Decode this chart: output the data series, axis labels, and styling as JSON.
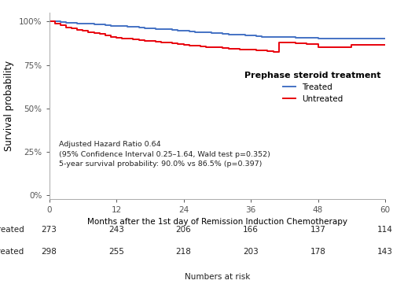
{
  "xlabel": "Months after the 1st day of Remission Induction Chemotherapy",
  "ylabel": "Survival probability",
  "xlim": [
    0,
    60
  ],
  "ylim": [
    -0.02,
    1.05
  ],
  "yticks": [
    0,
    0.25,
    0.5,
    0.75,
    1.0
  ],
  "ytick_labels": [
    "0%",
    "25%",
    "50%",
    "75%",
    "100%"
  ],
  "xticks": [
    0,
    12,
    24,
    36,
    48,
    60
  ],
  "legend_title": "Prephase steroid treatment",
  "legend_labels": [
    "Treated",
    "Untreated"
  ],
  "treated_color": "#4472C4",
  "untreated_color": "#E8000B",
  "annotation_line1": "Adjusted Hazard Ratio 0.64",
  "annotation_line2": "(95% Confidence Interval 0.25–1.64, Wald test p=0.352)",
  "annotation_line3": "5-year survival probability: 90.0% vs 86.5% (p=0.397)",
  "at_risk_label_treated": "Treated",
  "at_risk_label_untreated": "Untreated",
  "at_risk_times": [
    0,
    12,
    24,
    36,
    48,
    60
  ],
  "at_risk_treated": [
    273,
    243,
    206,
    166,
    137,
    114
  ],
  "at_risk_untreated": [
    298,
    255,
    218,
    203,
    178,
    143
  ],
  "at_risk_footer": "Numbers at risk",
  "treated_t": [
    0,
    1,
    2,
    3,
    4,
    5,
    6,
    7,
    8,
    9,
    10,
    11,
    12,
    13,
    14,
    15,
    16,
    17,
    18,
    19,
    20,
    21,
    22,
    23,
    24,
    25,
    26,
    27,
    28,
    29,
    30,
    31,
    32,
    33,
    34,
    35,
    36,
    37,
    38,
    39,
    40,
    42,
    44,
    46,
    48,
    50,
    52,
    54,
    56,
    58,
    60
  ],
  "treated_s": [
    1.0,
    1.0,
    0.996,
    0.993,
    0.993,
    0.989,
    0.989,
    0.986,
    0.982,
    0.982,
    0.979,
    0.975,
    0.975,
    0.972,
    0.968,
    0.968,
    0.965,
    0.961,
    0.961,
    0.958,
    0.954,
    0.954,
    0.951,
    0.947,
    0.947,
    0.944,
    0.94,
    0.94,
    0.937,
    0.933,
    0.933,
    0.93,
    0.926,
    0.926,
    0.923,
    0.919,
    0.919,
    0.916,
    0.912,
    0.912,
    0.909,
    0.909,
    0.905,
    0.905,
    0.902,
    0.902,
    0.9,
    0.9,
    0.9,
    0.9,
    0.9
  ],
  "untreated_t": [
    0,
    1,
    2,
    3,
    4,
    5,
    6,
    7,
    8,
    9,
    10,
    11,
    12,
    13,
    14,
    15,
    16,
    17,
    18,
    19,
    20,
    21,
    22,
    23,
    24,
    25,
    26,
    27,
    28,
    29,
    30,
    31,
    32,
    33,
    34,
    35,
    36,
    37,
    38,
    39,
    40,
    41,
    42,
    44,
    46,
    48,
    50,
    52,
    54,
    56,
    58,
    60
  ],
  "untreated_s": [
    1.0,
    0.99,
    0.977,
    0.967,
    0.96,
    0.953,
    0.947,
    0.94,
    0.933,
    0.927,
    0.92,
    0.913,
    0.907,
    0.903,
    0.9,
    0.897,
    0.893,
    0.89,
    0.887,
    0.883,
    0.88,
    0.877,
    0.873,
    0.87,
    0.867,
    0.863,
    0.86,
    0.857,
    0.853,
    0.85,
    0.85,
    0.847,
    0.843,
    0.843,
    0.84,
    0.84,
    0.837,
    0.833,
    0.833,
    0.83,
    0.827,
    0.88,
    0.877,
    0.873,
    0.87,
    0.853,
    0.853,
    0.853,
    0.865,
    0.865,
    0.865,
    0.865
  ]
}
